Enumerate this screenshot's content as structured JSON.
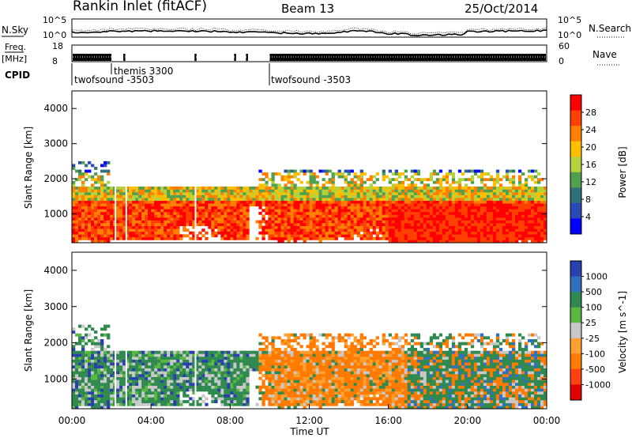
{
  "header": {
    "radar": "Rankin Inlet (fitACF)",
    "beam": "Beam 13",
    "date": "25/Oct/2014"
  },
  "noise_panel": {
    "left_label": "N.Sky",
    "right_label": "N.Search",
    "left_ticks": [
      "10^5",
      "10^0"
    ],
    "right_ticks": [
      "10^5",
      "10^0"
    ]
  },
  "freq_panel": {
    "left_label": "Freq.",
    "left_unit": "[MHz]",
    "right_label": "Nave",
    "left_ticks": [
      "18",
      "8"
    ],
    "right_ticks": [
      "60",
      "0"
    ]
  },
  "cpid": {
    "label": "CPID",
    "programs": [
      {
        "name": "twofsound -3503",
        "start_h": 0,
        "end_h": 2.0
      },
      {
        "name": "themis 3300",
        "start_h": 2.0,
        "end_h": 10.0
      },
      {
        "name": "twofsound -3503",
        "start_h": 10.0,
        "end_h": 24.0
      }
    ]
  },
  "chart_data": [
    {
      "type": "heatmap",
      "title": "",
      "parameter": "Power",
      "xlabel": "",
      "ylabel": "Slant Range [km]",
      "x_range_hours": [
        0,
        24
      ],
      "ylim": [
        180,
        4500
      ],
      "y_ticks": [
        "4000",
        "3000",
        "2000",
        "1000"
      ],
      "colorbar": {
        "label": "Power [dB]",
        "ticks": [
          "28",
          "24",
          "20",
          "16",
          "12",
          "8",
          "4"
        ],
        "colors": [
          "#ff0000",
          "#ff4000",
          "#ff8000",
          "#ffbf00",
          "#b4d23c",
          "#50a050",
          "#30707a",
          "#2a4ab8",
          "#0000ff"
        ]
      }
    },
    {
      "type": "heatmap",
      "title": "",
      "parameter": "Velocity",
      "xlabel": "Time UT",
      "ylabel": "Slant Range [km]",
      "x_range_hours": [
        0,
        24
      ],
      "ylim": [
        180,
        4500
      ],
      "x_ticks": [
        "00:00",
        "04:00",
        "08:00",
        "12:00",
        "16:00",
        "20:00",
        "00:00"
      ],
      "y_ticks": [
        "4000",
        "3000",
        "2000",
        "1000"
      ],
      "colorbar": {
        "label": "Velocity [m s^-1]",
        "ticks": [
          "1000",
          "500",
          "100",
          "25",
          "-25",
          "-100",
          "-500",
          "-1000"
        ],
        "colors": [
          "#2840b0",
          "#3070c0",
          "#308a50",
          "#58b840",
          "#c8c8c8",
          "#ffa030",
          "#ff7a00",
          "#ff4010",
          "#e00000"
        ]
      }
    }
  ]
}
